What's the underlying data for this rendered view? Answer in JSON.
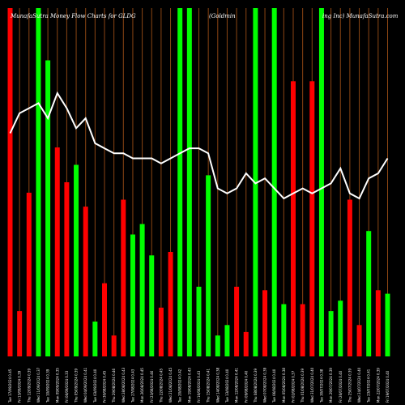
{
  "title_left": "MunafaSutra  Money Flow  Charts for GLDG",
  "title_middle": "(Goldmin",
  "title_right": "ing Inc) MunafaSutra.com",
  "colors": {
    "background": "#000000",
    "separator": "#8b4513",
    "up_bar": "#00ff00",
    "down_bar": "#ff0000",
    "line": "#ffffff",
    "text": "#ffffff"
  },
  "chart_data": {
    "type": "bar",
    "x_tick_labels": [
      "Tue 17/09/2024 0.45",
      "Fri 13/09/2024 0.39",
      "Thu 12/09/2024 0.39",
      "Wed 11/09/2024 0.37",
      "Tue 10/09/2024 0.39",
      "Mon 09/09/2024 0.35",
      "Fri 06/09/2024 0.33",
      "Thu 05/09/2024 0.39",
      "Wed 04/09/2024 0.41",
      "Tue 03/09/2024 0.40",
      "Fri 30/08/2024 0.45",
      "Thu 29/08/2024 0.46",
      "Wed 28/08/2024 0.43",
      "Tue 27/08/2024 0.43",
      "Mon 26/08/2024 0.45",
      "Fri 23/08/2024 0.46",
      "Thu 22/08/2024 0.45",
      "Wed 21/08/2024 0.45",
      "Tue 20/08/2024 0.42",
      "Mon 19/08/2024 0.43",
      "Fri 16/08/2024 0.43",
      "Thu 15/08/2024 0.41",
      "Wed 14/08/2024 0.38",
      "Tue 13/08/2024 0.40",
      "Mon 12/08/2024 0.41",
      "Fri 09/08/2024 0.40",
      "Thu 08/08/2024 0.39",
      "Wed 07/08/2024 0.39",
      "Tue 06/08/2024 0.40",
      "Mon 05/08/2024 0.38",
      "Fri 02/08/2024 0.37",
      "Thu 01/08/2024 0.39",
      "Wed 31/07/2024 0.40",
      "Tue 30/07/2024 0.38",
      "Mon 29/07/2024 0.39",
      "Fri 26/07/2024 0.40",
      "Thu 25/07/2024 0.39",
      "Wed 24/07/2024 0.40",
      "Tue 23/07/2024 0.41",
      "Mon 22/07/2024 0.39",
      "Fri 19/07/2024 0.40"
    ],
    "bar_direction": [
      "down",
      "down",
      "down",
      "up",
      "up",
      "down",
      "down",
      "up",
      "down",
      "up",
      "down",
      "down",
      "down",
      "up",
      "up",
      "up",
      "down",
      "down",
      "up",
      "up",
      "up",
      "up",
      "up",
      "up",
      "down",
      "down",
      "up",
      "down",
      "up",
      "up",
      "down",
      "down",
      "down",
      "up",
      "up",
      "up",
      "down",
      "down",
      "up",
      "down",
      "up"
    ],
    "bar_values": [
      100,
      13,
      47,
      100,
      85,
      60,
      50,
      55,
      43,
      10,
      21,
      6,
      45,
      35,
      38,
      29,
      14,
      30,
      100,
      100,
      20,
      52,
      6,
      9,
      20,
      7,
      100,
      19,
      100,
      15,
      79,
      15,
      79,
      100,
      13,
      16,
      45,
      9,
      36,
      19,
      18
    ],
    "line_values": [
      92,
      96,
      97,
      98,
      95,
      100,
      97,
      93,
      95,
      90,
      89,
      88,
      88,
      87,
      87,
      87,
      86,
      87,
      88,
      89,
      89,
      88,
      81,
      80,
      81,
      84,
      82,
      83,
      81,
      79,
      80,
      81,
      80,
      81,
      82,
      85,
      80,
      79,
      83,
      84,
      87
    ],
    "bar_scale_max": 100,
    "line_scale": [
      0,
      100
    ]
  }
}
